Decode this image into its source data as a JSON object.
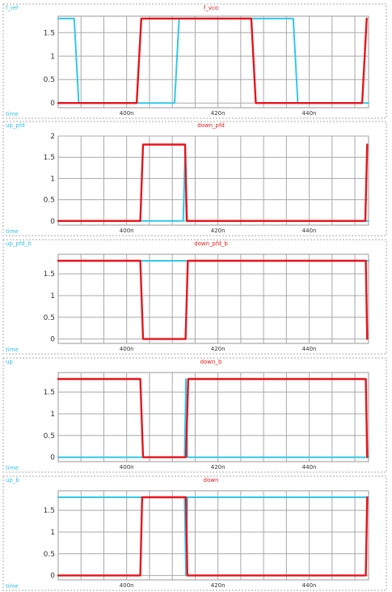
{
  "colors": {
    "cyan_trace": "#33c8e8",
    "red_trace": "#e8141c",
    "grid": "#a8a8a8"
  },
  "chart_data": [
    {
      "type": "line",
      "corner_label": "f_ref",
      "title": "f_vco",
      "xlabel": "time",
      "x_ticks": [
        "400n",
        "420n",
        "440n"
      ],
      "xlim": [
        385,
        453
      ],
      "ylim": [
        -0.1,
        1.85
      ],
      "y_ticks": [
        "0",
        "0.5",
        "1",
        "1.5"
      ],
      "series": [
        {
          "name": "f_ref",
          "color": "#33c8e8",
          "x": [
            385,
            388.5,
            389.5,
            410.5,
            411.5,
            414.5,
            415.5,
            436.5,
            437.5,
            453
          ],
          "y": [
            1.8,
            1.8,
            0,
            0,
            1.8,
            1.8,
            1.8,
            1.8,
            0,
            0
          ]
        },
        {
          "name": "f_vco",
          "color": "#e8141c",
          "x": [
            385,
            402.2,
            403.2,
            427.3,
            428.3,
            451.6,
            452.6
          ],
          "y": [
            0,
            0,
            1.8,
            1.8,
            0,
            0,
            1.8
          ]
        }
      ]
    },
    {
      "type": "line",
      "corner_label": "up_pfd",
      "title": "down_pfd",
      "xlabel": "time",
      "x_ticks": [
        "400n",
        "420n",
        "440n"
      ],
      "xlim": [
        385,
        453
      ],
      "ylim": [
        -0.1,
        2.0
      ],
      "y_ticks": [
        "0",
        "0.5",
        "1",
        "1.5",
        "2"
      ],
      "series": [
        {
          "name": "up_pfd",
          "color": "#33c8e8",
          "x": [
            385,
            412.4,
            412.8,
            413.1,
            453
          ],
          "y": [
            0,
            0,
            1.6,
            0,
            0
          ]
        },
        {
          "name": "down_pfd",
          "color": "#e8141c",
          "x": [
            385,
            403.0,
            403.6,
            412.8,
            413.2,
            452.3,
            452.7
          ],
          "y": [
            0,
            0,
            1.8,
            1.8,
            0,
            0,
            1.8
          ]
        }
      ]
    },
    {
      "type": "line",
      "corner_label": "up_pfd_b",
      "title": "down_pfd_b",
      "xlabel": "time",
      "x_ticks": [
        "400n",
        "420n",
        "440n"
      ],
      "xlim": [
        385,
        453
      ],
      "ylim": [
        -0.1,
        1.95
      ],
      "y_ticks": [
        "0",
        "0.5",
        "1",
        "1.5"
      ],
      "series": [
        {
          "name": "up_pfd_b",
          "color": "#33c8e8",
          "x": [
            385,
            412.4,
            412.8,
            453
          ],
          "y": [
            1.8,
            1.8,
            1.8,
            1.8
          ]
        },
        {
          "name": "down_pfd_b",
          "color": "#e8141c",
          "x": [
            385,
            403.0,
            403.6,
            412.9,
            413.4,
            452.4,
            452.7
          ],
          "y": [
            1.8,
            1.8,
            0,
            0,
            1.8,
            1.8,
            0
          ]
        }
      ]
    },
    {
      "type": "line",
      "corner_label": "up",
      "title": "down_b",
      "xlabel": "time",
      "x_ticks": [
        "400n",
        "420n",
        "440n"
      ],
      "xlim": [
        385,
        453
      ],
      "ylim": [
        -0.1,
        1.95
      ],
      "y_ticks": [
        "0",
        "0.5",
        "1",
        "1.5"
      ],
      "series": [
        {
          "name": "up",
          "color": "#33c8e8",
          "x": [
            385,
            412.7,
            413.0,
            413.3,
            453
          ],
          "y": [
            0,
            0,
            1.8,
            0,
            0
          ]
        },
        {
          "name": "down_b",
          "color": "#e8141c",
          "x": [
            385,
            403.0,
            403.6,
            413.0,
            413.5,
            452.4,
            452.7
          ],
          "y": [
            1.8,
            1.8,
            0,
            0,
            1.8,
            1.8,
            0
          ]
        }
      ]
    },
    {
      "type": "line",
      "corner_label": "up_b",
      "title": "down",
      "xlabel": "time",
      "x_ticks": [
        "400n",
        "420n",
        "440n"
      ],
      "xlim": [
        385,
        453
      ],
      "ylim": [
        -0.1,
        1.95
      ],
      "y_ticks": [
        "0",
        "0.5",
        "1",
        "1.5"
      ],
      "series": [
        {
          "name": "up_b",
          "color": "#33c8e8",
          "x": [
            385,
            412.7,
            413.0,
            413.3,
            453
          ],
          "y": [
            1.8,
            1.8,
            0,
            1.8,
            1.8
          ]
        },
        {
          "name": "down",
          "color": "#e8141c",
          "x": [
            385,
            403.0,
            403.4,
            413.0,
            413.3,
            452.4,
            452.7
          ],
          "y": [
            0,
            0,
            1.8,
            1.8,
            0,
            0,
            1.8
          ]
        }
      ]
    }
  ]
}
